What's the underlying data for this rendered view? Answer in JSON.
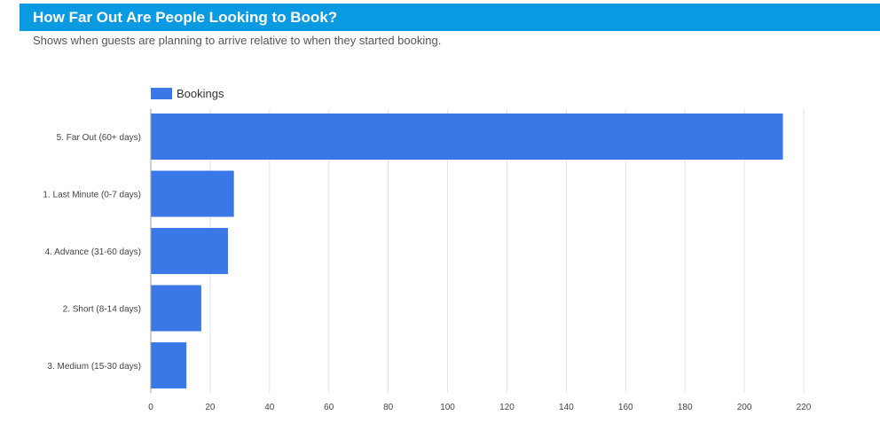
{
  "header": {
    "title": "How Far Out Are People Looking to Book?"
  },
  "subtitle": "Shows when guests are planning to arrive relative to when they started booking.",
  "chart_data": {
    "type": "bar",
    "orientation": "horizontal",
    "categories": [
      "5. Far Out (60+ days)",
      "1. Last Minute (0-7 days)",
      "4. Advance (31-60 days)",
      "2. Short (8-14 days)",
      "3. Medium (15-30 days)"
    ],
    "series": [
      {
        "name": "Bookings",
        "values": [
          213,
          28,
          26,
          17,
          12
        ],
        "color": "#3b78e7"
      }
    ],
    "xlim": [
      0,
      220
    ],
    "xticks": [
      0,
      20,
      40,
      60,
      80,
      100,
      120,
      140,
      160,
      180,
      200,
      220
    ],
    "grid": true,
    "legend_position": "top-left"
  }
}
